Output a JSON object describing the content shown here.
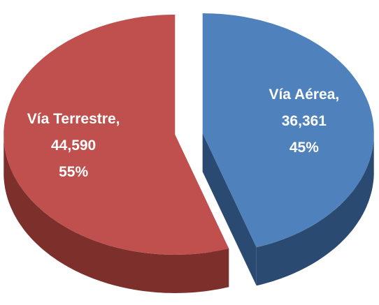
{
  "chart_data": {
    "type": "pie3d",
    "categories": [
      "Vía Aérea,",
      "Vía Terrestre,"
    ],
    "values": [
      36361,
      44590
    ],
    "value_labels": [
      "36,361",
      "44,590"
    ],
    "percents": [
      45,
      55
    ],
    "percent_labels": [
      "45%",
      "55%"
    ],
    "colors": [
      "#4f81bd",
      "#c0504d"
    ],
    "side_colors": [
      "#2b4a72",
      "#7d2f2c"
    ]
  }
}
